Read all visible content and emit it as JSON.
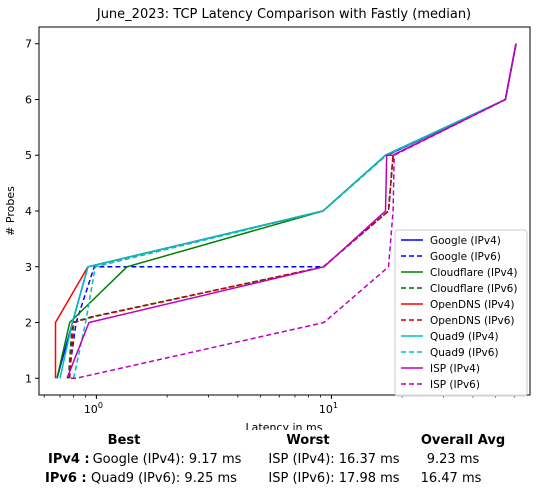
{
  "chart_data": {
    "type": "line",
    "title": "June_2023: TCP Latency Comparison with Fastly (median)",
    "xlabel": "Latency in ms",
    "ylabel": "# Probes",
    "xscale": "log",
    "xlim": [
      0.57,
      70
    ],
    "ylim": [
      0.7,
      7.3
    ],
    "yticks": [
      1,
      2,
      3,
      4,
      5,
      6,
      7
    ],
    "xticks": [
      {
        "value": 1,
        "label": "10",
        "sup": "0"
      },
      {
        "value": 10,
        "label": "10",
        "sup": "1"
      }
    ],
    "grid": false,
    "legend_position": "lower-right",
    "series": [
      {
        "name": "Google (IPv4)",
        "color": "#0000ff",
        "dash": "solid",
        "x": [
          0.68,
          0.92,
          9.2,
          17,
          17.3,
          55,
          61
        ],
        "y": [
          1,
          3,
          4,
          5,
          5,
          6,
          7
        ]
      },
      {
        "name": "Google (IPv6)",
        "color": "#0000ff",
        "dash": "dashed",
        "x": [
          0.76,
          0.82,
          0.98,
          9.25,
          17.5,
          18.3,
          55,
          61
        ],
        "y": [
          1,
          2,
          3,
          3,
          4,
          5,
          6,
          7
        ]
      },
      {
        "name": "Cloudflare (IPv4)",
        "color": "#008000",
        "dash": "solid",
        "x": [
          0.68,
          0.77,
          1.35,
          9.2,
          17,
          55,
          61
        ],
        "y": [
          1,
          2,
          3,
          4,
          5,
          6,
          7
        ]
      },
      {
        "name": "Cloudflare (IPv6)",
        "color": "#006400",
        "dash": "dashed",
        "x": [
          0.76,
          0.79,
          0.95,
          9.25,
          17.5,
          18.3,
          55,
          61
        ],
        "y": [
          1,
          2,
          2.1,
          3,
          4,
          5,
          6,
          7
        ]
      },
      {
        "name": "OpenDNS (IPv4)",
        "color": "#ff0000",
        "dash": "solid",
        "x": [
          0.67,
          0.67,
          0.92,
          9.2,
          17,
          55,
          61
        ],
        "y": [
          1,
          2,
          3,
          4,
          5,
          6,
          7
        ]
      },
      {
        "name": "OpenDNS (IPv6)",
        "color": "#cc0000",
        "dash": "dashed",
        "x": [
          0.77,
          0.8,
          0.97,
          9.25,
          17.5,
          18.3,
          55,
          61
        ],
        "y": [
          1,
          2,
          2.1,
          3,
          4,
          5,
          6,
          7
        ]
      },
      {
        "name": "Quad9 (IPv4)",
        "color": "#00bfbf",
        "dash": "solid",
        "x": [
          0.7,
          0.79,
          0.92,
          9.2,
          17,
          55,
          61
        ],
        "y": [
          1,
          2,
          3,
          4,
          5,
          6,
          7
        ]
      },
      {
        "name": "Quad9 (IPv6)",
        "color": "#00bfbf",
        "dash": "dashed",
        "x": [
          0.8,
          0.9,
          0.99,
          9.25,
          17.2,
          55,
          61
        ],
        "y": [
          1,
          2,
          3,
          4,
          5,
          6,
          7
        ]
      },
      {
        "name": "ISP (IPv4)",
        "color": "#bf00bf",
        "dash": "solid",
        "x": [
          0.75,
          0.93,
          9.3,
          17,
          17.2,
          18.3,
          55,
          61
        ],
        "y": [
          1,
          2,
          3,
          4,
          5,
          5,
          6,
          7
        ]
      },
      {
        "name": "ISP (IPv6)",
        "color": "#bf00bf",
        "dash": "dashed",
        "x": [
          0.78,
          0.82,
          9.3,
          17.5,
          18.3,
          18.5,
          55,
          61
        ],
        "y": [
          1,
          1,
          2,
          3,
          4,
          5,
          6,
          7
        ]
      }
    ]
  },
  "stats": {
    "headers": {
      "best": "Best",
      "worst": "Worst",
      "avg": "Overall Avg"
    },
    "rows": [
      {
        "label": "IPv4 :",
        "best": "Google (IPv4): 9.17 ms",
        "worst": "ISP (IPv4): 16.37 ms",
        "avg": "9.23 ms"
      },
      {
        "label": "IPv6 :",
        "best": "Quad9 (IPv6): 9.25 ms",
        "worst": "ISP (IPv6): 17.98 ms",
        "avg": "16.47 ms"
      }
    ]
  }
}
